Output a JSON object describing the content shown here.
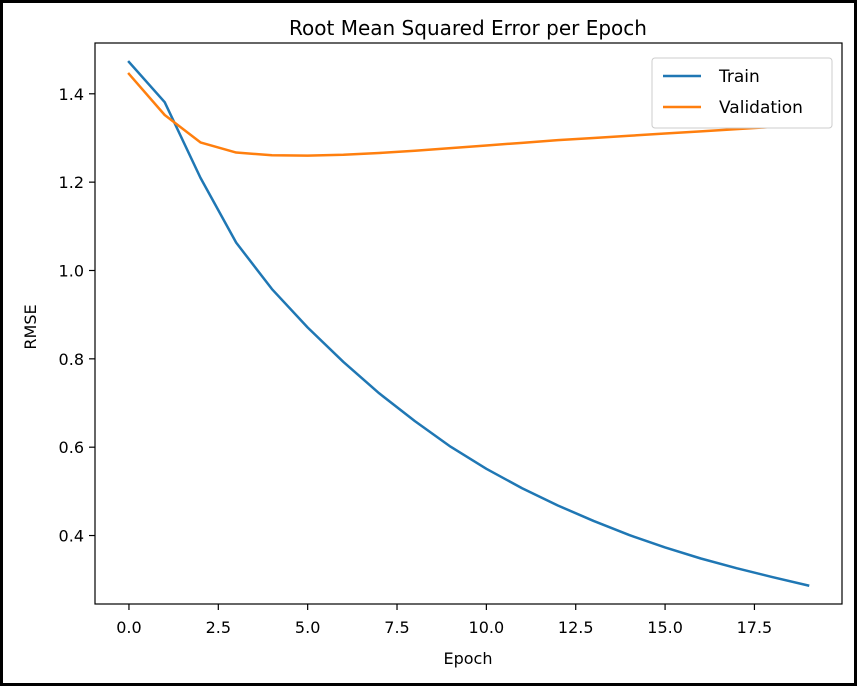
{
  "chart_data": {
    "type": "line",
    "title": "Root Mean Squared Error per Epoch",
    "xlabel": "Epoch",
    "ylabel": "RMSE",
    "xlim": [
      -0.95,
      19.95
    ],
    "ylim": [
      0.245,
      1.515
    ],
    "xticks": [
      0.0,
      2.5,
      5.0,
      7.5,
      10.0,
      12.5,
      15.0,
      17.5
    ],
    "xtick_labels": [
      "0.0",
      "2.5",
      "5.0",
      "7.5",
      "10.0",
      "12.5",
      "15.0",
      "17.5"
    ],
    "yticks": [
      0.4,
      0.6,
      0.8,
      1.0,
      1.2,
      1.4
    ],
    "ytick_labels": [
      "0.4",
      "0.6",
      "0.8",
      "1.0",
      "1.2",
      "1.4"
    ],
    "grid": false,
    "legend_position": "top-right",
    "x": [
      0,
      1,
      2,
      3,
      4,
      5,
      6,
      7,
      8,
      9,
      10,
      11,
      12,
      13,
      14,
      15,
      16,
      17,
      18,
      19
    ],
    "series": [
      {
        "name": "Train",
        "color": "#1f77b4",
        "values": [
          1.472,
          1.381,
          1.21,
          1.063,
          0.958,
          0.871,
          0.793,
          0.722,
          0.659,
          0.601,
          0.551,
          0.507,
          0.468,
          0.433,
          0.401,
          0.373,
          0.348,
          0.326,
          0.306,
          0.287
        ]
      },
      {
        "name": "Validation",
        "color": "#ff7f0e",
        "values": [
          1.445,
          1.352,
          1.29,
          1.267,
          1.261,
          1.26,
          1.262,
          1.266,
          1.271,
          1.277,
          1.283,
          1.289,
          1.295,
          1.3,
          1.305,
          1.31,
          1.315,
          1.32,
          1.325,
          1.329
        ]
      }
    ]
  }
}
